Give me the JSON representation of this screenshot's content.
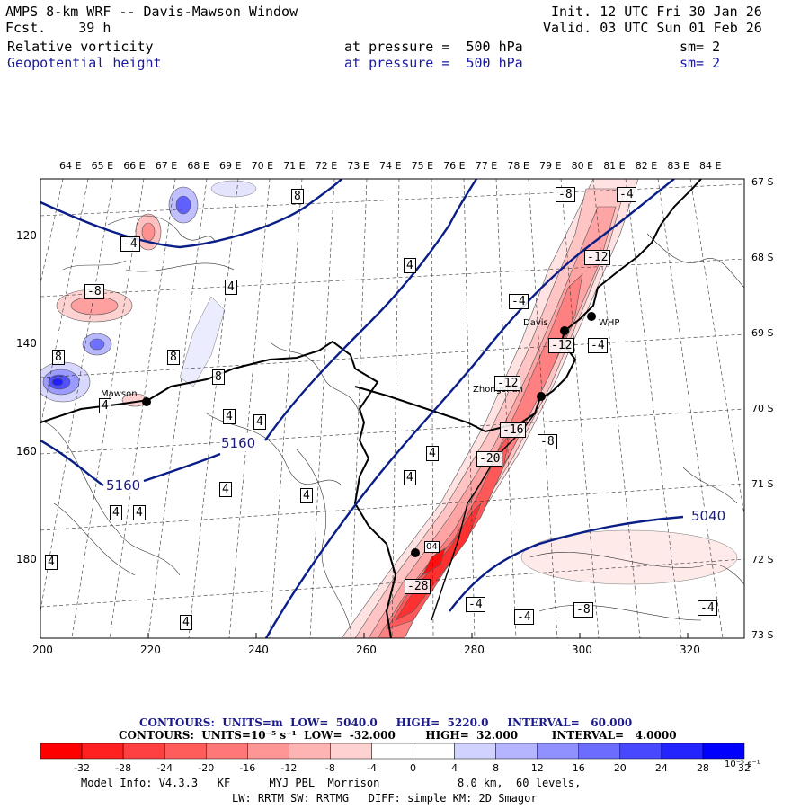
{
  "header": {
    "title": "AMPS 8-km WRF -- Davis-Mawson Window",
    "forecast_label": "Fcst.",
    "forecast_hours": "39 h",
    "init_label": "Init.",
    "init_time": "12 UTC Fri 30 Jan 26",
    "valid_label": "Valid.",
    "valid_time": "03 UTC Sun 01 Feb 26",
    "field1": {
      "name": "Relative vorticity",
      "level": "at pressure =  500 hPa",
      "smooth": "sm= 2"
    },
    "field2": {
      "name": "Geopotential height",
      "level": "at pressure =  500 hPa",
      "smooth": "sm= 2"
    }
  },
  "map": {
    "lon_labels": [
      "64 E",
      "65 E",
      "66 E",
      "67 E",
      "68 E",
      "69 E",
      "70 E",
      "71 E",
      "72 E",
      "73 E",
      "74 E",
      "75 E",
      "76 E",
      "77 E",
      "78 E",
      "79 E",
      "80 E",
      "81 E",
      "82 E",
      "83 E",
      "84 E"
    ],
    "lat_labels": [
      "67 S",
      "68 S",
      "69 S",
      "70 S",
      "71 S",
      "72 S",
      "73 S"
    ],
    "x_ticks": [
      "200",
      "220",
      "240",
      "260",
      "280",
      "300",
      "320"
    ],
    "y_ticks": [
      "120",
      "140",
      "160",
      "180"
    ],
    "stations": [
      {
        "name": "Davis"
      },
      {
        "name": "WHP"
      },
      {
        "name": "Zhongshan"
      },
      {
        "name": "Mawson"
      },
      {
        "name": "04"
      }
    ],
    "height_labels": [
      "5160",
      "5160",
      "5040"
    ],
    "vort_labels": [
      "-8",
      "-4",
      "-4",
      "-8",
      "-4",
      "-12",
      "-4",
      "-12",
      "-12",
      "-16",
      "-8",
      "-20",
      "-28",
      "-4",
      "-4",
      "-8",
      "-4",
      "4",
      "4",
      "4",
      "4",
      "4",
      "4",
      "4",
      "4",
      "8",
      "8",
      "8",
      "4",
      "4",
      "4",
      "4",
      "4",
      "8"
    ]
  },
  "contours_info": {
    "line1": {
      "label": "CONTOURS:",
      "units": "UNITS=m",
      "low": "LOW=  5040.0",
      "high": "HIGH=  5220.0",
      "interval": "INTERVAL=   60.000"
    },
    "line2": {
      "label": "CONTOURS:",
      "units": "UNITS=10⁻⁵ s⁻¹",
      "low": "LOW=  -32.000",
      "high": "HIGH=  32.000",
      "interval": "INTERVAL=   4.0000"
    }
  },
  "colorbar": {
    "labels": [
      "-32",
      "-28",
      "-24",
      "-20",
      "-16",
      "-12",
      "-8",
      "-4",
      "0",
      "4",
      "8",
      "12",
      "16",
      "20",
      "24",
      "28",
      "32"
    ],
    "units": "10⁻⁵ s⁻¹",
    "colors": [
      "#ff0000",
      "#ff2020",
      "#ff4040",
      "#ff5c5c",
      "#ff7878",
      "#ff9696",
      "#ffb4b4",
      "#ffd2d2",
      "#ffffff",
      "#ffffff",
      "#d2d2ff",
      "#b4b4ff",
      "#9090ff",
      "#6c6cff",
      "#4848ff",
      "#2424ff",
      "#0000ff"
    ]
  },
  "footer": {
    "model_info": "Model Info: V4.3.3   KF      MYJ PBL  Morrison            8.0 km,  60 levels,",
    "physics_info": "LW: RRTM SW: RRTMG   DIFF: simple KM: 2D Smagor"
  }
}
